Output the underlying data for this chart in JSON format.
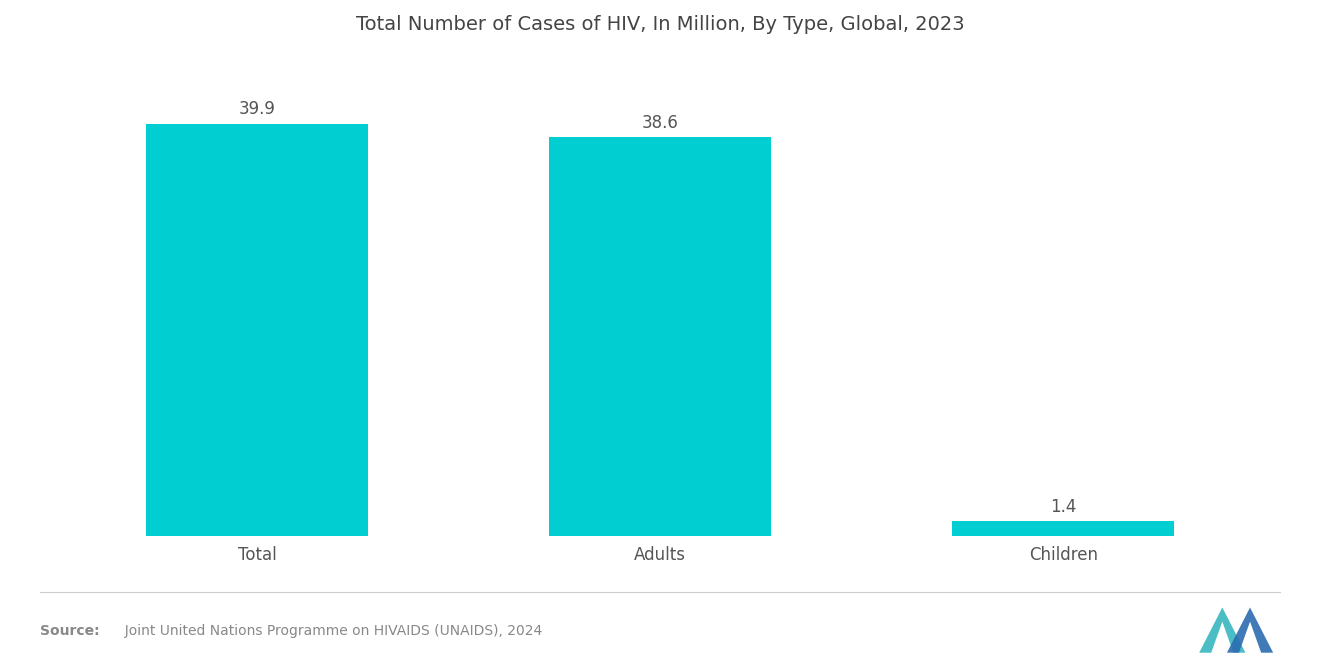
{
  "title": "Total Number of Cases of HIV, In Million, By Type, Global, 2023",
  "categories": [
    "Total",
    "Adults",
    "Children"
  ],
  "values": [
    39.9,
    38.6,
    1.4
  ],
  "bar_color": "#00CED1",
  "background_color": "#ffffff",
  "title_fontsize": 14,
  "label_fontsize": 12,
  "value_fontsize": 12,
  "source_bold": "Source:",
  "source_text": "  Joint United Nations Programme on HIVAIDS (UNAIDS), 2024",
  "ylim": [
    0,
    46
  ],
  "bar_width": 0.55,
  "x_positions": [
    0,
    1,
    2
  ]
}
